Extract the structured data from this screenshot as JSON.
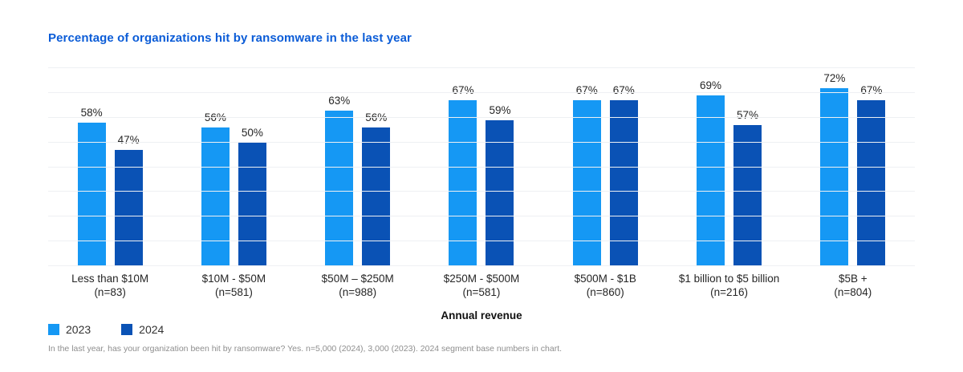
{
  "page": {
    "title": "Percentage of organizations hit by ransomware in the last year",
    "footnote": "In the last year, has your organization been hit by ransomware? Yes. n=5,000 (2024), 3,000 (2023). 2024 segment base numbers in chart."
  },
  "chart_data": {
    "type": "bar",
    "title": "Percentage of organizations hit by ransomware in the last year",
    "categories": [
      "Less than $10M",
      "$10M - $50M",
      "$50M – $250M",
      "$250M - $500M",
      "$500M - $1B",
      "$1 billion to $5 billion",
      "$5B +"
    ],
    "category_n": [
      "(n=83)",
      "(n=581)",
      "(n=988)",
      "(n=581)",
      "(n=860)",
      "(n=216)",
      "(n=804)"
    ],
    "series": [
      {
        "name": "2023",
        "color": "#1598f4",
        "values": [
          58,
          56,
          63,
          67,
          67,
          69,
          72
        ]
      },
      {
        "name": "2024",
        "color": "#0a52b5",
        "values": [
          47,
          50,
          56,
          59,
          67,
          57,
          67
        ]
      }
    ],
    "xlabel": "Annual revenue",
    "ylabel": "",
    "ylim": [
      0,
      80
    ],
    "gridline_step": 10,
    "value_suffix": "%",
    "grid": "on",
    "legend_position": "bottom-left"
  },
  "colors": {
    "title_blue": "#0b5cd7",
    "series_2023": "#1598f4",
    "series_2024": "#0a52b5",
    "text": "#262626",
    "gridline": "#eef0f3",
    "footnote_gray": "#8e8e8e"
  }
}
